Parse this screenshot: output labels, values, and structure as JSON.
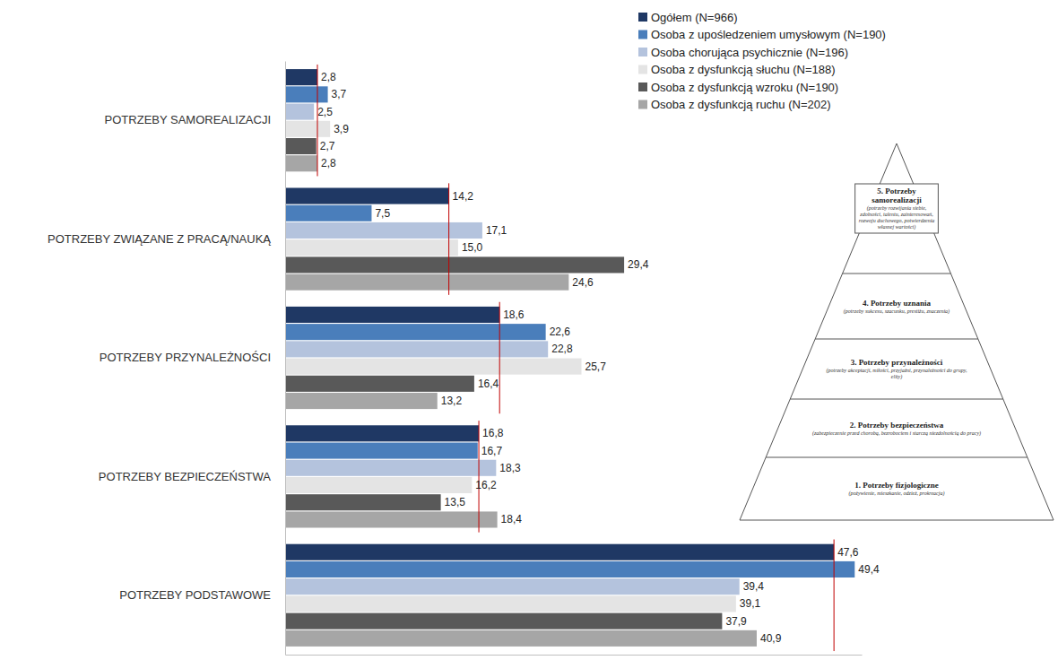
{
  "chart_data": {
    "type": "bar",
    "orientation": "horizontal",
    "categories": [
      "POTRZEBY SAMOREALIZACJI",
      "POTRZEBY ZWIĄZANE Z PRACĄ/NAUKĄ",
      "POTRZEBY PRZYNALEŻNOŚCI",
      "POTRZEBY BEZPIECZEŃSTWA",
      "POTRZEBY PODSTAWOWE"
    ],
    "series": [
      {
        "name": "Ogółem (N=966)",
        "color": "#1f3864",
        "values": [
          2.8,
          14.2,
          18.6,
          16.8,
          47.6
        ],
        "value_labels": [
          "2,8",
          "14,2",
          "18,6",
          "16,8",
          "47,6"
        ]
      },
      {
        "name": "Osoba z upośledzeniem umysłowym (N=190)",
        "color": "#4a7ebb",
        "values": [
          3.7,
          7.5,
          22.6,
          16.7,
          49.4
        ],
        "value_labels": [
          "3,7",
          "7,5",
          "22,6",
          "16,7",
          "49,4"
        ]
      },
      {
        "name": "Osoba chorująca psychicznie (N=196)",
        "color": "#b4c3dd",
        "values": [
          2.5,
          17.1,
          22.8,
          18.3,
          39.4
        ],
        "value_labels": [
          "2,5",
          "17,1",
          "22,8",
          "18,3",
          "39,4"
        ]
      },
      {
        "name": "Osoba z dysfunkcją słuchu (N=188)",
        "color": "#e4e4e4",
        "values": [
          3.9,
          15.0,
          25.7,
          16.2,
          39.1
        ],
        "value_labels": [
          "3,9",
          "15,0",
          "25,7",
          "16,2",
          "39,1"
        ]
      },
      {
        "name": "Osoba z dysfunkcją wzroku (N=190)",
        "color": "#595959",
        "values": [
          2.7,
          29.4,
          16.4,
          13.5,
          37.9
        ],
        "value_labels": [
          "2,7",
          "29,4",
          "16,4",
          "13,5",
          "37,9"
        ]
      },
      {
        "name": "Osoba z dysfunkcją ruchu (N=202)",
        "color": "#a6a6a6",
        "values": [
          2.8,
          24.6,
          13.2,
          18.4,
          40.9
        ],
        "value_labels": [
          "2,8",
          "24,6",
          "13,2",
          "18,4",
          "40,9"
        ]
      }
    ],
    "xlim": [
      0,
      50
    ],
    "xticks": [],
    "tick_labels": "y",
    "data_labels": true,
    "legend": "top-right",
    "grid": false
  },
  "pyramid": {
    "levels": [
      {
        "title": "1. Potrzeby fizjologiczne",
        "note": "(pożywienie, mieszkanie, odzież, prokreacja)"
      },
      {
        "title": "2. Potrzeby bezpieczeństwa",
        "note": "(zabezpieczenie przed chorobą, bezrobociem i starczą niezdolnością do pracy)"
      },
      {
        "title": "3. Potrzeby przynależności",
        "note": "(potrzeby akceptacji, miłości, przyjaźni, przynależności do grupy, elity)"
      },
      {
        "title": "4. Potrzeby uznania",
        "note": "(potrzeby sukcesu, szacunku, prestiżu, znaczenia)"
      },
      {
        "title": "5. Potrzeby samorealizacji",
        "note": "(potrzeby rozwijania siebie, zdolności, talentu, zainteresowań, rozwoju duchowego, potwierdzenia własnej wartości)"
      }
    ]
  }
}
